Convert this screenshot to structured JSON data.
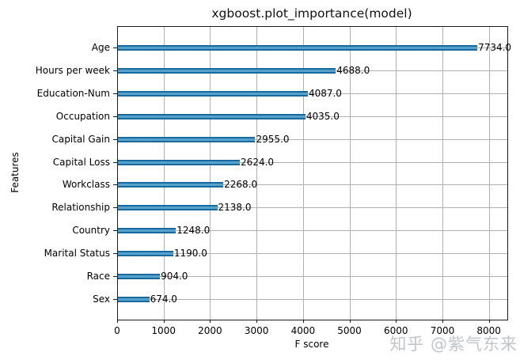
{
  "figure": {
    "watermark": "知乎 @紫气东来"
  },
  "chart_data": {
    "type": "bar",
    "orientation": "horizontal",
    "title": "xgboost.plot_importance(model)",
    "xlabel": "F score",
    "ylabel": "Features",
    "categories": [
      "Age",
      "Hours per week",
      "Education-Num",
      "Occupation",
      "Capital Gain",
      "Capital Loss",
      "Workclass",
      "Relationship",
      "Country",
      "Marital Status",
      "Race",
      "Sex"
    ],
    "values": [
      7734.0,
      4688.0,
      4087.0,
      4035.0,
      2955.0,
      2624.0,
      2268.0,
      2138.0,
      1248.0,
      1190.0,
      904.0,
      674.0
    ],
    "value_labels": [
      "7734.0",
      "4688.0",
      "4087.0",
      "4035.0",
      "2955.0",
      "2624.0",
      "2268.0",
      "2138.0",
      "1248.0",
      "1190.0",
      "904.0",
      "674.0"
    ],
    "xticks": [
      0,
      1000,
      2000,
      3000,
      4000,
      5000,
      6000,
      7000,
      8000
    ],
    "xlim": [
      0,
      8380
    ],
    "grid": true,
    "legend": false,
    "bar_color": "#1f77b4",
    "bar_color_light": "#55a2cd",
    "grid_color": "#b0b0b0",
    "axis_color": "#1a1a1a"
  }
}
